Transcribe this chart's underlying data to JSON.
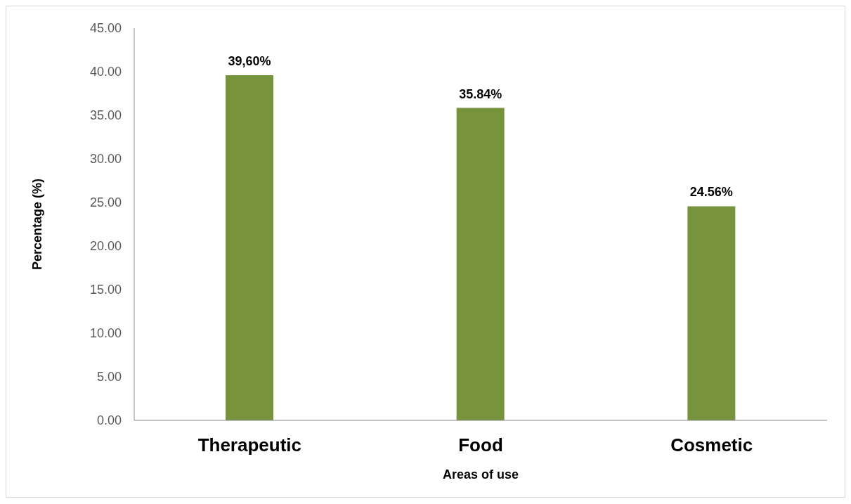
{
  "chart_data": {
    "type": "bar",
    "xlabel": "Areas of use",
    "ylabel": "Percentage (%)",
    "categories": [
      "Therapeutic",
      "Food",
      "Cosmetic"
    ],
    "values": [
      39.6,
      35.84,
      24.56
    ],
    "color": "#77933c",
    "value_labels": [
      "39,60%",
      "35.84%",
      "24.56%"
    ],
    "ylim": [
      0,
      45
    ],
    "yticks": [
      {
        "value": 0,
        "label": "0.00"
      },
      {
        "value": 5,
        "label": "5.00"
      },
      {
        "value": 10,
        "label": "10.00"
      },
      {
        "value": 15,
        "label": "15.00"
      },
      {
        "value": 20,
        "label": "20.00"
      },
      {
        "value": 25,
        "label": "25.00"
      },
      {
        "value": 30,
        "label": "30.00"
      },
      {
        "value": 35,
        "label": "35.00"
      },
      {
        "value": 40,
        "label": "40.00"
      },
      {
        "value": 45,
        "label": "45.00"
      }
    ],
    "grid": false,
    "legend": false
  }
}
